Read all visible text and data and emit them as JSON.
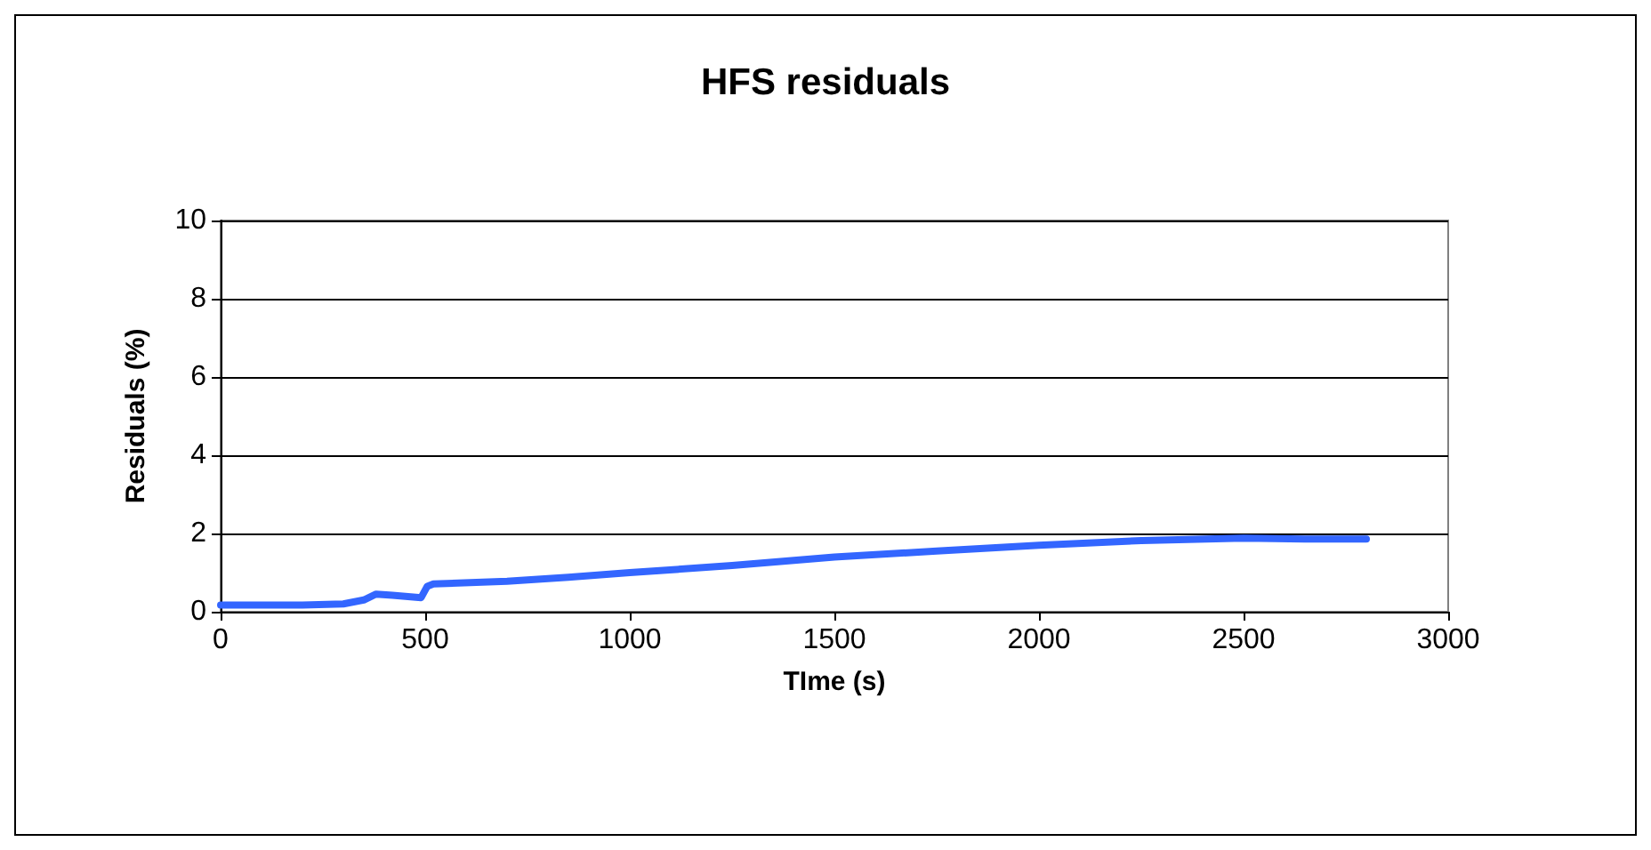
{
  "chart_data": {
    "type": "line",
    "title": "HFS residuals",
    "xlabel": "TIme (s)",
    "ylabel": "Residuals (%)",
    "series": [
      {
        "color": "#3366ff",
        "x": [
          0,
          100,
          200,
          300,
          350,
          380,
          420,
          490,
          505,
          520,
          700,
          850,
          1000,
          1250,
          1500,
          1750,
          2000,
          2250,
          2500,
          2650,
          2800
        ],
        "values": [
          0.17,
          0.17,
          0.17,
          0.2,
          0.3,
          0.45,
          0.42,
          0.36,
          0.65,
          0.71,
          0.78,
          0.88,
          1.0,
          1.18,
          1.4,
          1.55,
          1.7,
          1.82,
          1.88,
          1.86,
          1.86
        ]
      }
    ],
    "xlim": [
      0,
      3000
    ],
    "xticks": [
      0,
      500,
      1000,
      1500,
      2000,
      2500,
      3000
    ],
    "ylim": [
      0,
      10
    ],
    "yticks": [
      0,
      2,
      4,
      6,
      8,
      10
    ],
    "grid": "y",
    "marker": "none",
    "line_style": "solid"
  }
}
